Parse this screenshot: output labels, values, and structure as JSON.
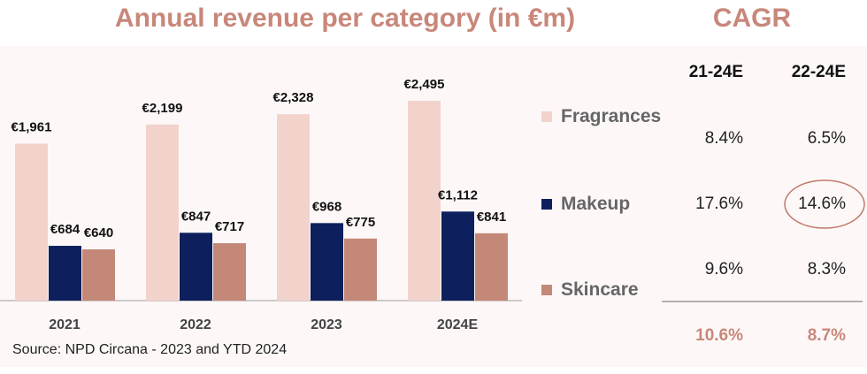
{
  "title": "Annual revenue per category (in €m)",
  "source": "Source: NPD Circana - 2023 and YTD 2024",
  "colors": {
    "Fragrances": "#f2d3cc",
    "Makeup": "#0d1f5c",
    "Skincare": "#c48878",
    "accent": "#c8877a"
  },
  "chart_data": {
    "type": "bar",
    "title": "Annual revenue per category (in €m)",
    "categories": [
      "2021",
      "2022",
      "2023",
      "2024E"
    ],
    "series": [
      {
        "name": "Fragrances",
        "values": [
          1961,
          2199,
          2328,
          2495
        ],
        "labels": [
          "€1,961",
          "€2,199",
          "€2,328",
          "€2,495"
        ]
      },
      {
        "name": "Makeup",
        "values": [
          684,
          847,
          968,
          1112
        ],
        "labels": [
          "€684",
          "€847",
          "€968",
          "€1,112"
        ]
      },
      {
        "name": "Skincare",
        "values": [
          640,
          717,
          775,
          841
        ],
        "labels": [
          "€640",
          "€717",
          "€775",
          "€841"
        ]
      }
    ],
    "legend": "right"
  },
  "cagr": {
    "title": "CAGR",
    "columns": [
      "21-24E",
      "22-24E"
    ],
    "rows": [
      {
        "category": "Fragrances",
        "values": [
          "8.4%",
          "6.5%"
        ]
      },
      {
        "category": "Makeup",
        "values": [
          "17.6%",
          "14.6%"
        ],
        "highlighted": "14.6%"
      },
      {
        "category": "Skincare",
        "values": [
          "9.6%",
          "8.3%"
        ]
      }
    ],
    "total": [
      "10.6%",
      "8.7%"
    ]
  }
}
